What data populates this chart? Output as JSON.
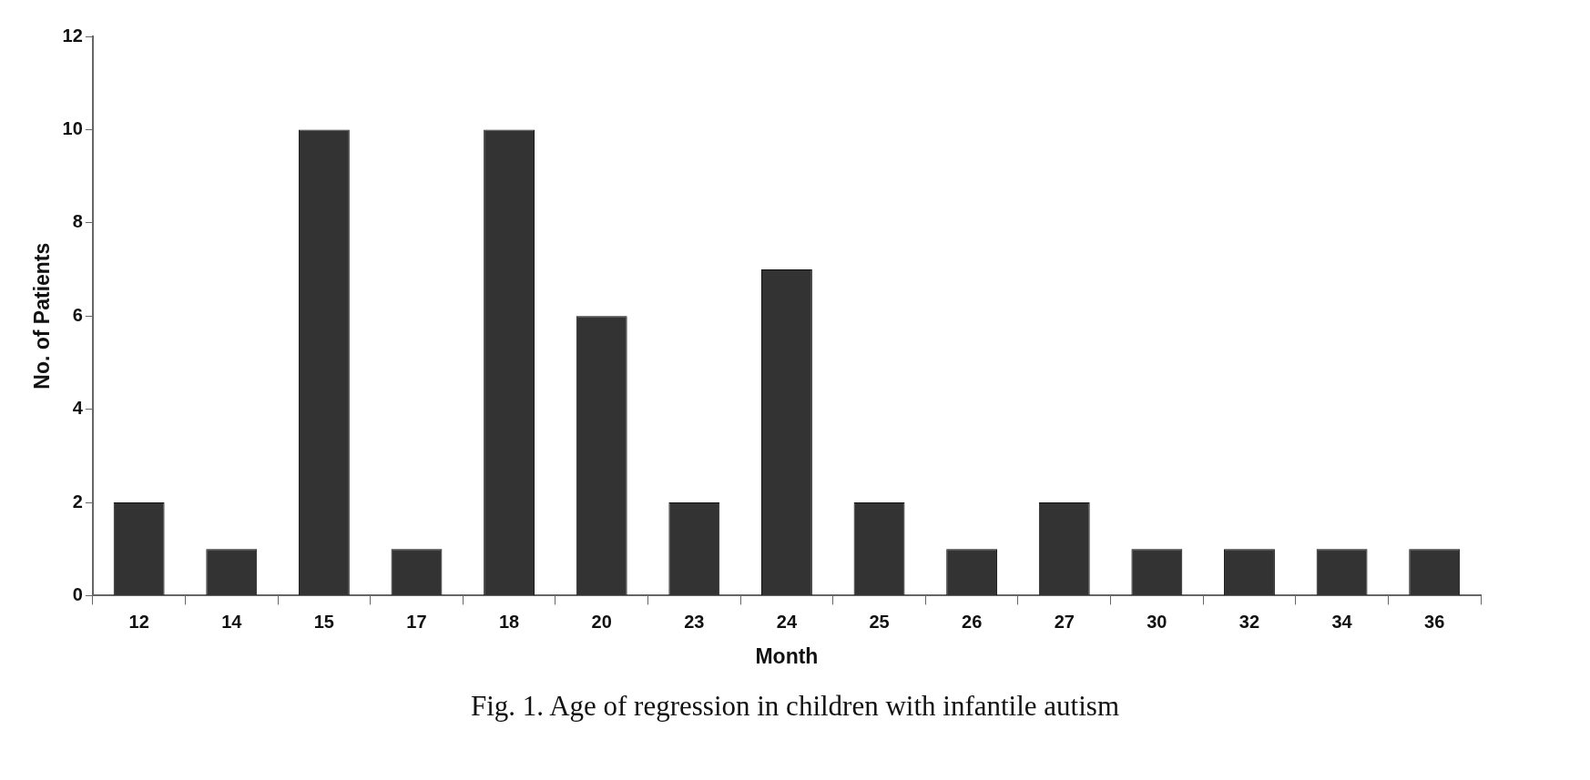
{
  "chart_data": {
    "type": "bar",
    "title": "Fig. 1. Age of regression in children with infantile autism",
    "xlabel": "Month",
    "ylabel": "No. of Patients",
    "categories": [
      "12",
      "14",
      "15",
      "17",
      "18",
      "20",
      "23",
      "24",
      "25",
      "26",
      "27",
      "30",
      "32",
      "34",
      "36"
    ],
    "values": [
      2,
      1,
      10,
      1,
      10,
      6,
      2,
      7,
      2,
      1,
      2,
      1,
      1,
      1,
      1
    ],
    "color": "#333333",
    "ylim": [
      0,
      12
    ],
    "yticks": [
      0,
      2,
      4,
      6,
      8,
      10,
      12
    ],
    "grid": false,
    "legend": false
  }
}
